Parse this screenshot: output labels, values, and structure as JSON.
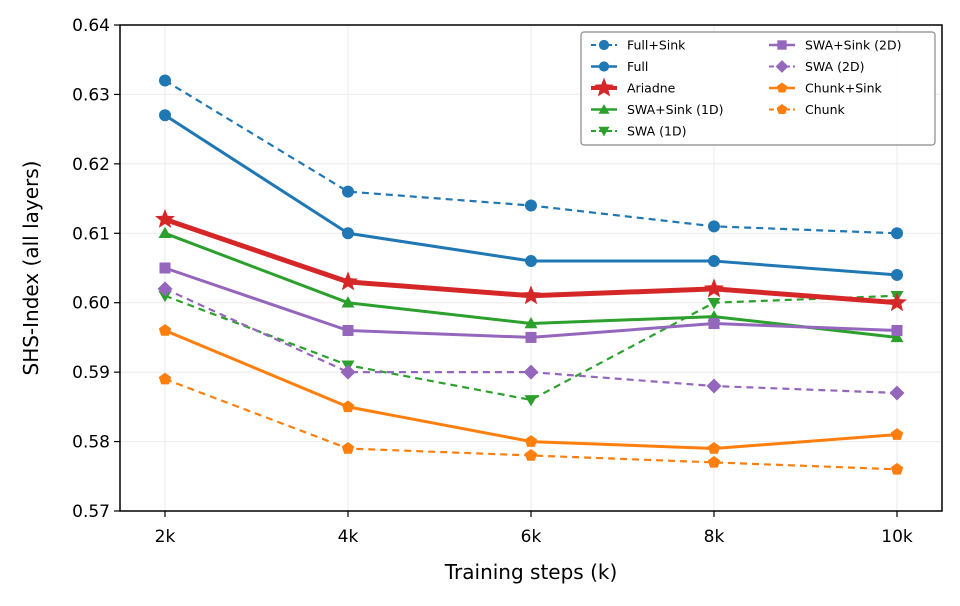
{
  "chart_data": {
    "type": "line",
    "title": "",
    "xlabel": "Training steps (k)",
    "ylabel": "SHS-Index (all layers)",
    "categories": [
      "2k",
      "4k",
      "6k",
      "8k",
      "10k"
    ],
    "ylim": [
      0.57,
      0.64
    ],
    "yticks": [
      "0.57",
      "0.58",
      "0.59",
      "0.60",
      "0.61",
      "0.62",
      "0.63",
      "0.64"
    ],
    "grid": true,
    "legend_position": "top-right",
    "legend_columns": 2,
    "series": [
      {
        "name": "Full+Sink",
        "color": "#1f77b4",
        "dashed": true,
        "marker": "circle",
        "emphasis": false,
        "values": [
          0.632,
          0.616,
          0.614,
          0.611,
          0.61
        ]
      },
      {
        "name": "Full",
        "color": "#1f77b4",
        "dashed": false,
        "marker": "circle",
        "emphasis": false,
        "values": [
          0.627,
          0.61,
          0.606,
          0.606,
          0.604
        ]
      },
      {
        "name": "Ariadne",
        "color": "#d62728",
        "dashed": false,
        "marker": "star",
        "emphasis": true,
        "values": [
          0.612,
          0.603,
          0.601,
          0.602,
          0.6
        ]
      },
      {
        "name": "SWA+Sink (1D)",
        "color": "#2ca02c",
        "dashed": false,
        "marker": "triangle-up",
        "emphasis": false,
        "values": [
          0.61,
          0.6,
          0.597,
          0.598,
          0.595
        ]
      },
      {
        "name": "SWA (1D)",
        "color": "#2ca02c",
        "dashed": true,
        "marker": "triangle-down",
        "emphasis": false,
        "values": [
          0.601,
          0.591,
          0.586,
          0.6,
          0.601
        ]
      },
      {
        "name": "SWA+Sink (2D)",
        "color": "#9467bd",
        "dashed": false,
        "marker": "square",
        "emphasis": false,
        "values": [
          0.605,
          0.596,
          0.595,
          0.597,
          0.596
        ]
      },
      {
        "name": "SWA (2D)",
        "color": "#9467bd",
        "dashed": true,
        "marker": "diamond",
        "emphasis": false,
        "values": [
          0.602,
          0.59,
          0.59,
          0.588,
          0.587
        ]
      },
      {
        "name": "Chunk+Sink",
        "color": "#ff7f0e",
        "dashed": false,
        "marker": "pentagon",
        "emphasis": false,
        "values": [
          0.596,
          0.585,
          0.58,
          0.579,
          0.581
        ]
      },
      {
        "name": "Chunk",
        "color": "#ff7f0e",
        "dashed": true,
        "marker": "pentagon",
        "emphasis": false,
        "values": [
          0.589,
          0.579,
          0.578,
          0.577,
          0.576
        ]
      }
    ]
  }
}
